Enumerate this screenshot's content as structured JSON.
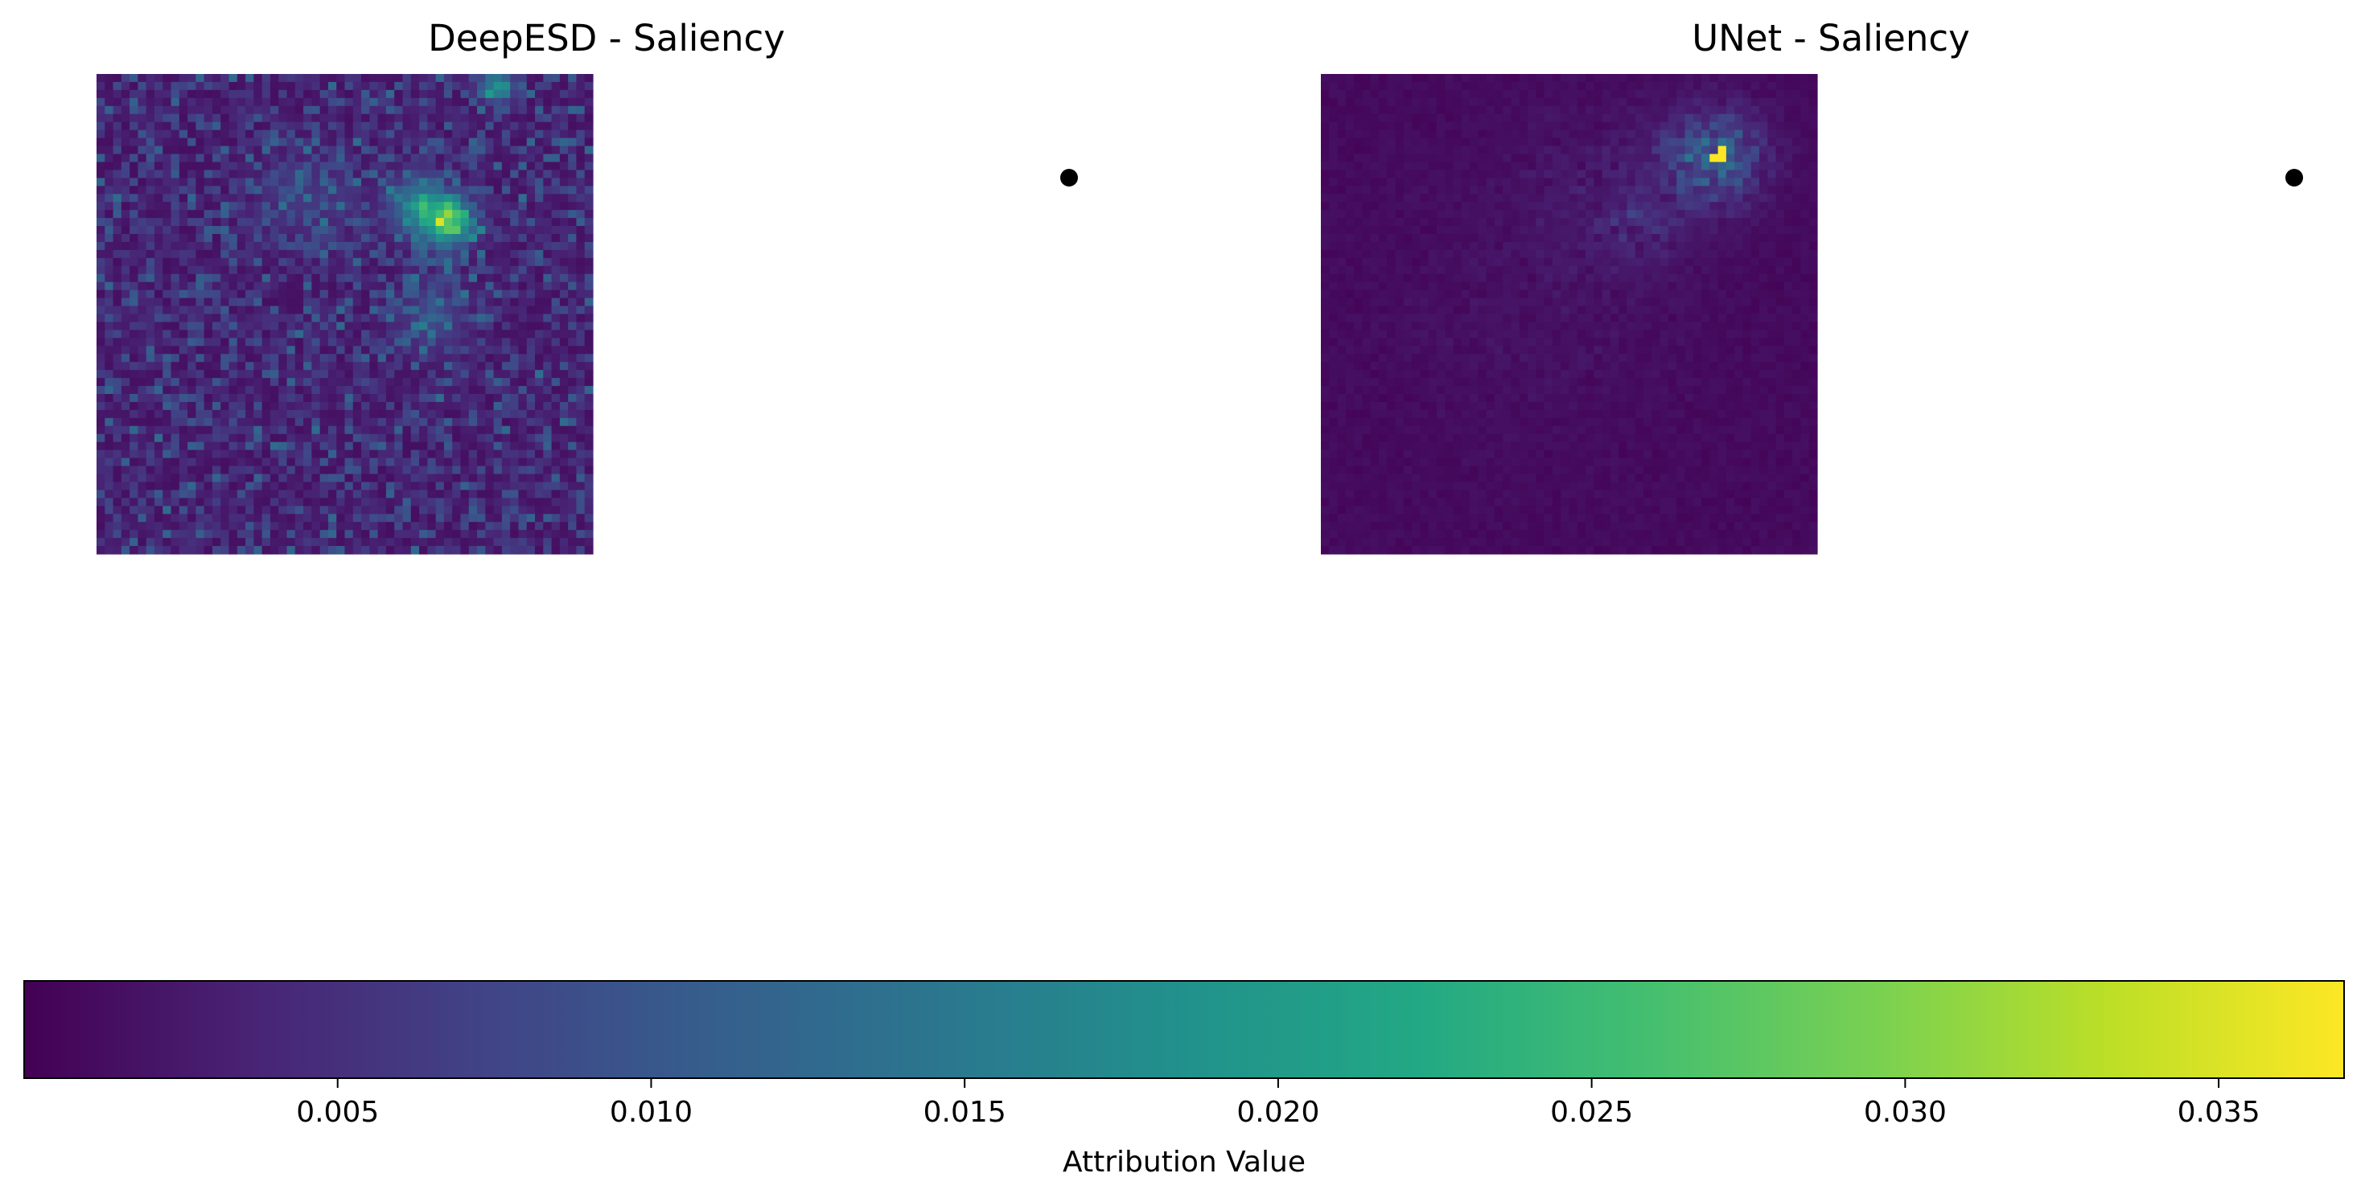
{
  "chart_data": [
    {
      "type": "heatmap",
      "title": "DeepESD - Saliency",
      "grid_size": [
        60,
        60
      ],
      "colormap": "viridis",
      "background_level": "low (~0.003-0.006), textured noise throughout",
      "hotspots": [
        {
          "region": "center-upper",
          "value": 0.034
        },
        {
          "region": "top-right edge",
          "value": 0.026
        },
        {
          "region": "upper-center",
          "value": 0.022
        },
        {
          "region": "center",
          "value": 0.02
        }
      ],
      "location_marker": "black dot"
    },
    {
      "type": "heatmap",
      "title": "UNet - Saliency",
      "grid_size": [
        60,
        60
      ],
      "colormap": "viridis",
      "background_level": "near zero (~0.0005-0.002)",
      "hotspots": [
        {
          "region": "upper-right cluster",
          "value": 0.037
        },
        {
          "region": "upper-right cluster surroundings",
          "value": 0.015
        }
      ],
      "location_marker": "black dot"
    }
  ],
  "colorbar": {
    "label": "Attribution Value",
    "range": [
      0.0,
      0.037
    ],
    "ticks": [
      "0.005",
      "0.010",
      "0.015",
      "0.020",
      "0.025",
      "0.030",
      "0.035"
    ],
    "tick_values": [
      0.005,
      0.01,
      0.015,
      0.02,
      0.025,
      0.03,
      0.035
    ],
    "colormap": "viridis",
    "orientation": "horizontal"
  }
}
